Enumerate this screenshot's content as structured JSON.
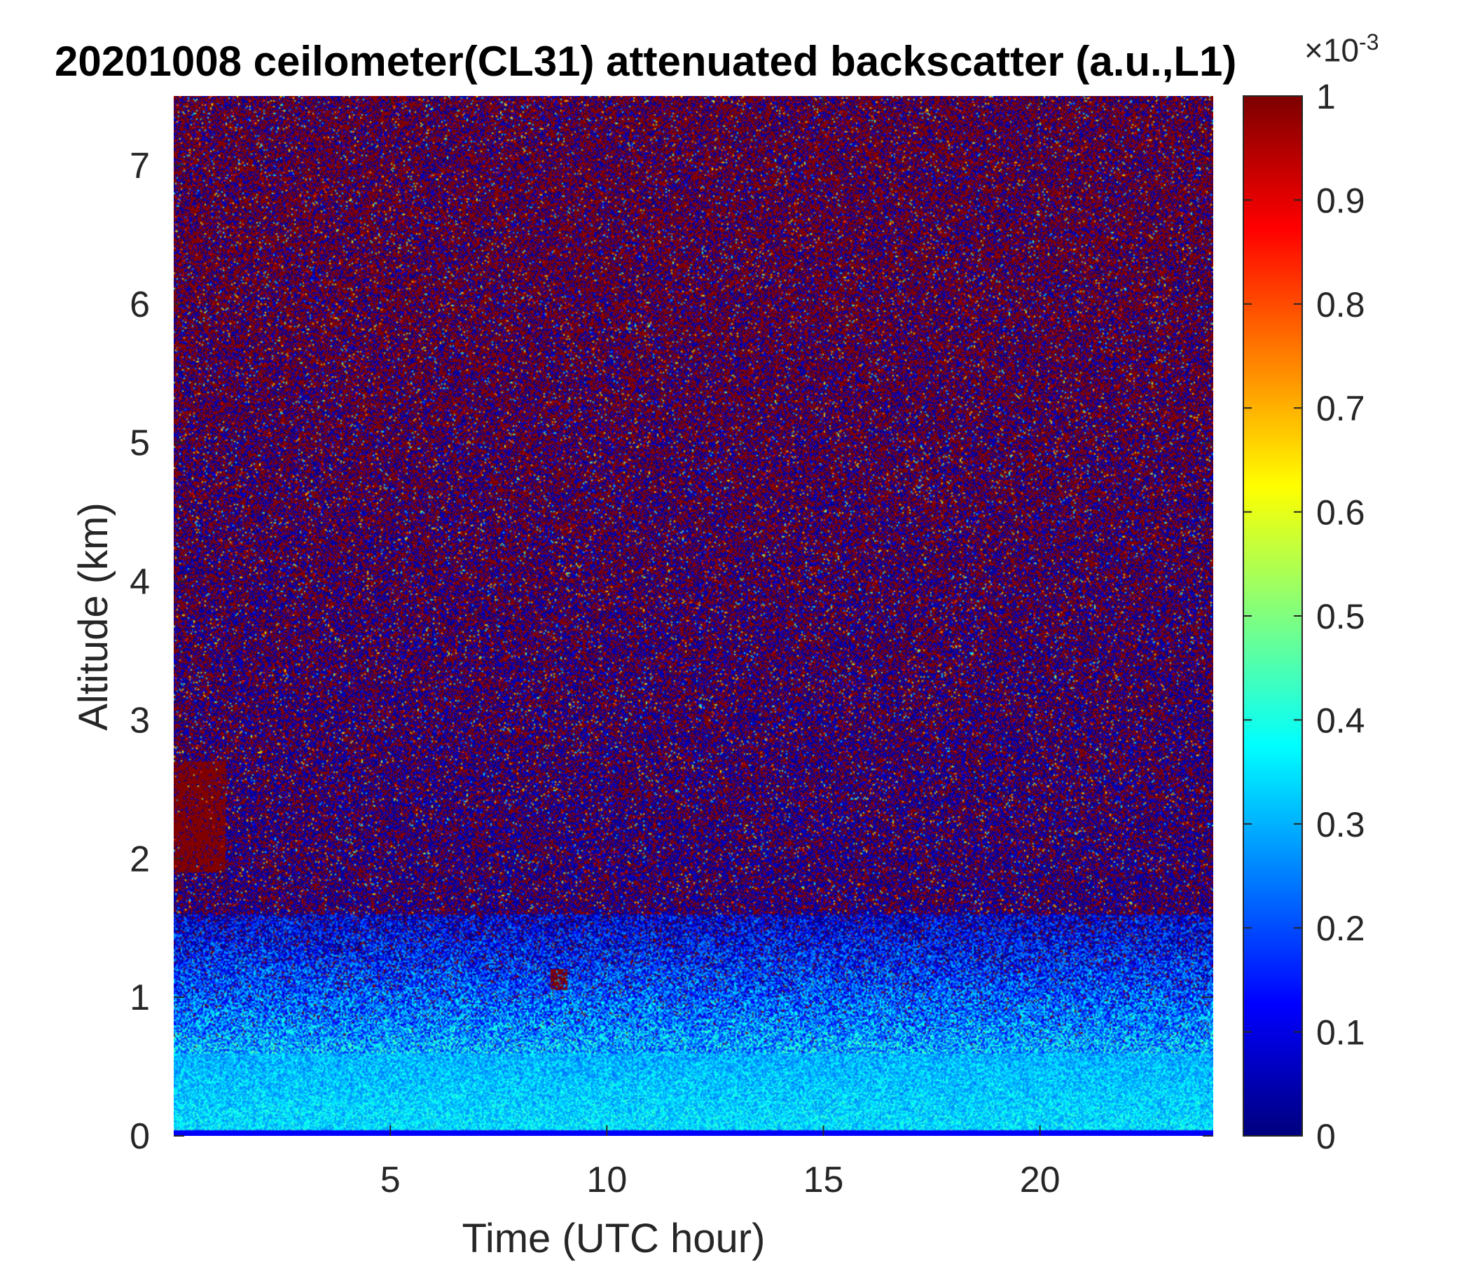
{
  "chart_data": {
    "type": "heatmap",
    "title": "20201008 ceilometer(CL31) attenuated backscatter (a.u.,L1)",
    "xlabel": "Time (UTC hour)",
    "ylabel": "Altitude (km)",
    "xlim": [
      0,
      24
    ],
    "ylim": [
      0,
      7.5
    ],
    "xticks": [
      5,
      10,
      15,
      20
    ],
    "yticks": [
      0,
      1,
      2,
      3,
      4,
      5,
      6,
      7
    ],
    "colorbar": {
      "colormap": "jet",
      "clim": [
        0,
        1
      ],
      "ticks": [
        0,
        0.1,
        0.2,
        0.3,
        0.4,
        0.5,
        0.6,
        0.7,
        0.8,
        0.9,
        1
      ],
      "tick_labels": [
        "0",
        "0.1",
        "0.2",
        "0.3",
        "0.4",
        "0.5",
        "0.6",
        "0.7",
        "0.8",
        "0.9",
        "1"
      ],
      "exponent_base": "×10",
      "exponent": "-3",
      "location": "right"
    },
    "features": [
      {
        "description": "elevated backscatter near ground (boundary layer)",
        "altitude_km": [
          0,
          0.6
        ],
        "time_hour": [
          0,
          24
        ],
        "level": 0.35
      },
      {
        "description": "aerosol plume",
        "altitude_km": [
          1.9,
          2.7
        ],
        "time_hour": [
          0,
          1.2
        ],
        "level": 1.0
      },
      {
        "description": "small feature",
        "altitude_km": [
          1.05,
          1.2
        ],
        "time_hour": [
          8.7,
          9.1
        ],
        "level": 1.0
      }
    ],
    "grid": false
  }
}
